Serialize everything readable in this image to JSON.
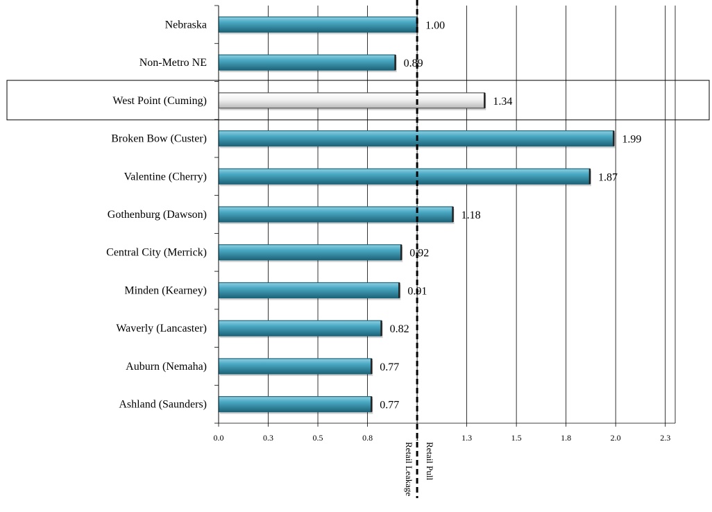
{
  "chart_data": {
    "type": "bar",
    "orientation": "horizontal",
    "categories": [
      "Nebraska",
      "Non-Metro NE",
      "West Point (Cuming)",
      "Broken Bow (Custer)",
      "Valentine (Cherry)",
      "Gothenburg (Dawson)",
      "Central City (Merrick)",
      "Minden (Kearney)",
      "Waverly (Lancaster)",
      "Auburn (Nemaha)",
      "Ashland (Saunders)"
    ],
    "values": [
      1.0,
      0.89,
      1.34,
      1.99,
      1.87,
      1.18,
      0.92,
      0.91,
      0.82,
      0.77,
      0.77
    ],
    "value_labels": [
      "1.00",
      "0.89",
      "1.34",
      "1.99",
      "1.87",
      "1.18",
      "0.92",
      "0.91",
      "0.82",
      "0.77",
      "0.77"
    ],
    "highlighted_category": "West Point (Cuming)",
    "xlim": [
      0,
      2.3
    ],
    "xticks": [
      0,
      0.25,
      0.5,
      0.75,
      1.0,
      1.25,
      1.5,
      1.75,
      2.0,
      2.25
    ],
    "xtick_labels": [
      "0.0",
      "0.3",
      "0.5",
      "0.8",
      "1",
      "1.3",
      "1.5",
      "1.8",
      "2.0",
      "2.3"
    ],
    "reference_line": {
      "x": 1.0,
      "style": "dashed"
    },
    "reference_labels": {
      "below": "Retail Leakage",
      "above": "Retail Pull"
    },
    "grid": "vertical",
    "title": "",
    "xlabel": "",
    "ylabel": ""
  },
  "colors": {
    "bar": "#3d9bb5",
    "bar_dark": "#1d6479",
    "highlight_bar": "#e8e8e8",
    "gridline": "#000000",
    "reference_line": "#000000"
  }
}
